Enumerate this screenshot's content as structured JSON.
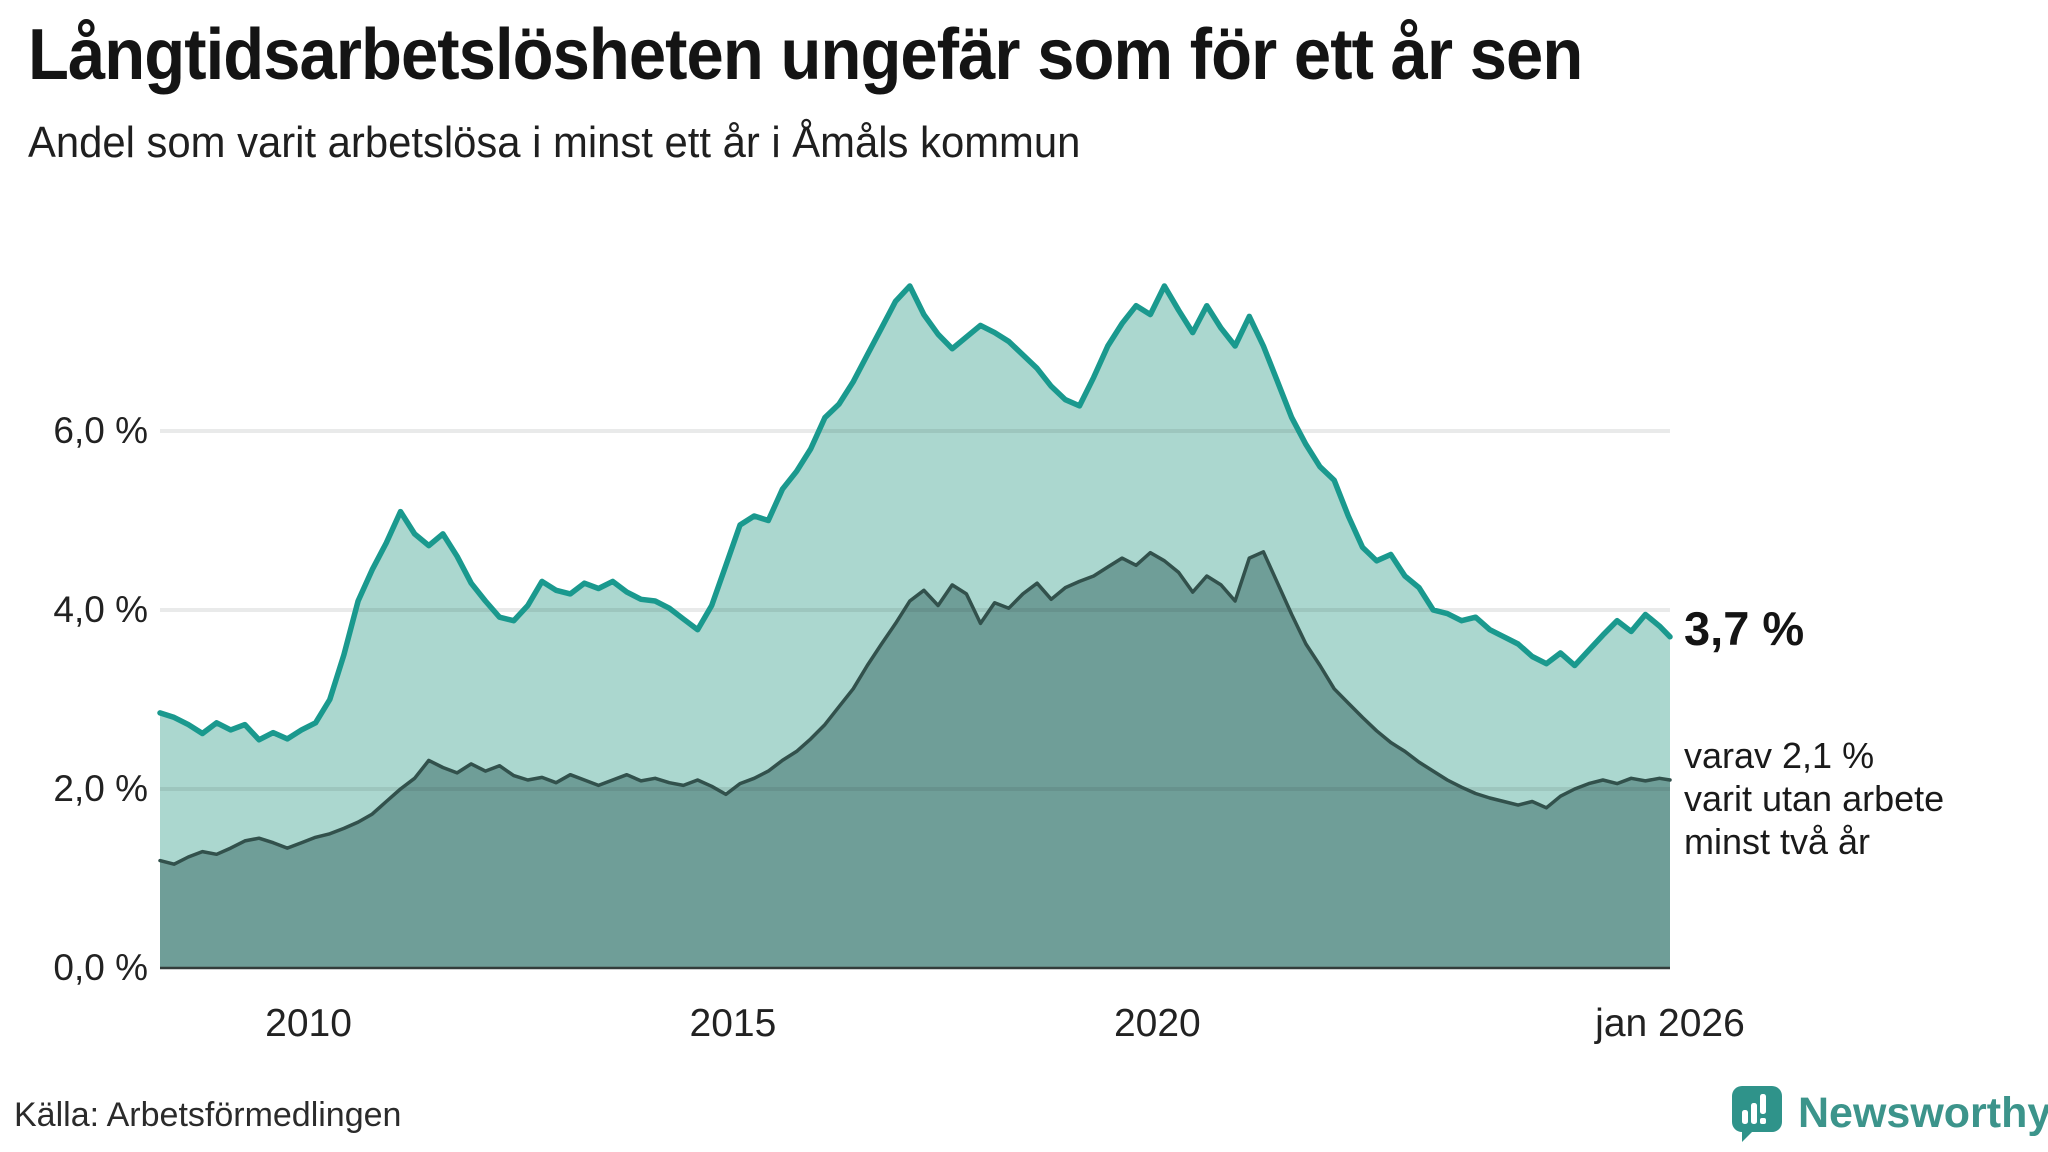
{
  "header": {
    "title": "Långtidsarbetslösheten ungefär som för ett år sen",
    "subtitle": "Andel som varit arbetslösa i minst ett år i Åmåls kommun"
  },
  "annotations": {
    "primary_value": "3,7 %",
    "secondary_line1": "varav 2,1 %",
    "secondary_line2": "varit utan arbete",
    "secondary_line3": "minst två år"
  },
  "footer": {
    "source": "Källa: Arbetsförmedlingen",
    "brand": "Newsworthy"
  },
  "colors": {
    "series1_line": "#1a998e",
    "series1_fill": "#abd7cf",
    "series2_line": "#32514c",
    "series2_fill": "#6f9e98",
    "gridline_overlay": "rgba(35,48,46,0.10)",
    "baseline": "#333d3b",
    "brand_teal": "#2f938a",
    "text": "#141414"
  },
  "chart_data": {
    "type": "area",
    "title": "Långtidsarbetslösheten ungefär som för ett år sen",
    "subtitle": "Andel som varit arbetslösa i minst ett år i Åmåls kommun",
    "unit": "%",
    "grid": true,
    "legend_position": "none",
    "x_start": 2008.25,
    "x_step_years": 0.166667,
    "x_end": 2026.04,
    "ylim": [
      0,
      7.9
    ],
    "x_ticks": [
      {
        "label": "2010",
        "year": 2010.0
      },
      {
        "label": "2015",
        "year": 2015.0
      },
      {
        "label": "2020",
        "year": 2020.0
      },
      {
        "label": "jan 2026",
        "year": 2026.04
      }
    ],
    "y_ticks": [
      {
        "label": "0,0 %",
        "value": 0
      },
      {
        "label": "2,0 %",
        "value": 2
      },
      {
        "label": "4,0 %",
        "value": 4
      },
      {
        "label": "6,0 %",
        "value": 6
      }
    ],
    "series": [
      {
        "name": "Andel som varit arbetslösa i minst ett år",
        "end_label": "3,7 %",
        "end_value": 3.7,
        "line_color": "#1a998e",
        "fill_color": "#abd7cf",
        "values": [
          2.85,
          2.8,
          2.72,
          2.62,
          2.74,
          2.66,
          2.72,
          2.55,
          2.63,
          2.56,
          2.66,
          2.74,
          3.0,
          3.5,
          4.1,
          4.45,
          4.75,
          5.1,
          4.85,
          4.72,
          4.85,
          4.6,
          4.3,
          4.1,
          3.92,
          3.88,
          4.05,
          4.32,
          4.22,
          4.18,
          4.3,
          4.24,
          4.32,
          4.2,
          4.12,
          4.1,
          4.02,
          3.9,
          3.78,
          4.05,
          4.5,
          4.95,
          5.05,
          5.0,
          5.35,
          5.55,
          5.8,
          6.15,
          6.3,
          6.55,
          6.85,
          7.15,
          7.45,
          7.62,
          7.3,
          7.08,
          6.92,
          7.05,
          7.18,
          7.1,
          7.0,
          6.85,
          6.7,
          6.5,
          6.35,
          6.28,
          6.6,
          6.95,
          7.2,
          7.4,
          7.3,
          7.62,
          7.35,
          7.1,
          7.4,
          7.15,
          6.95,
          7.28,
          6.95,
          6.55,
          6.15,
          5.85,
          5.6,
          5.45,
          5.05,
          4.7,
          4.55,
          4.62,
          4.38,
          4.25,
          4.0,
          3.96,
          3.88,
          3.92,
          3.78,
          3.7,
          3.62,
          3.48,
          3.4,
          3.52,
          3.38,
          3.55,
          3.72,
          3.88,
          3.76,
          3.95,
          3.82,
          3.7
        ]
      },
      {
        "name": "varav varit utan arbete minst två år",
        "end_label": "2,1 %",
        "end_value": 2.1,
        "line_color": "#32514c",
        "fill_color": "#6f9e98",
        "values": [
          1.2,
          1.16,
          1.24,
          1.3,
          1.27,
          1.34,
          1.42,
          1.45,
          1.4,
          1.34,
          1.4,
          1.46,
          1.5,
          1.56,
          1.63,
          1.72,
          1.86,
          2.0,
          2.12,
          2.32,
          2.24,
          2.18,
          2.28,
          2.2,
          2.26,
          2.15,
          2.1,
          2.13,
          2.07,
          2.16,
          2.1,
          2.04,
          2.1,
          2.16,
          2.09,
          2.12,
          2.07,
          2.04,
          2.1,
          2.03,
          1.94,
          2.06,
          2.12,
          2.2,
          2.32,
          2.42,
          2.56,
          2.72,
          2.92,
          3.12,
          3.38,
          3.62,
          3.85,
          4.1,
          4.22,
          4.05,
          4.28,
          4.18,
          3.85,
          4.08,
          4.02,
          4.18,
          4.3,
          4.12,
          4.25,
          4.32,
          4.38,
          4.48,
          4.58,
          4.5,
          4.64,
          4.55,
          4.42,
          4.2,
          4.38,
          4.28,
          4.1,
          4.58,
          4.65,
          4.3,
          3.95,
          3.62,
          3.38,
          3.12,
          2.96,
          2.8,
          2.65,
          2.52,
          2.42,
          2.3,
          2.2,
          2.1,
          2.02,
          1.95,
          1.9,
          1.86,
          1.82,
          1.86,
          1.79,
          1.92,
          2.0,
          2.06,
          2.1,
          2.06,
          2.12,
          2.09,
          2.12,
          2.1
        ]
      }
    ]
  }
}
